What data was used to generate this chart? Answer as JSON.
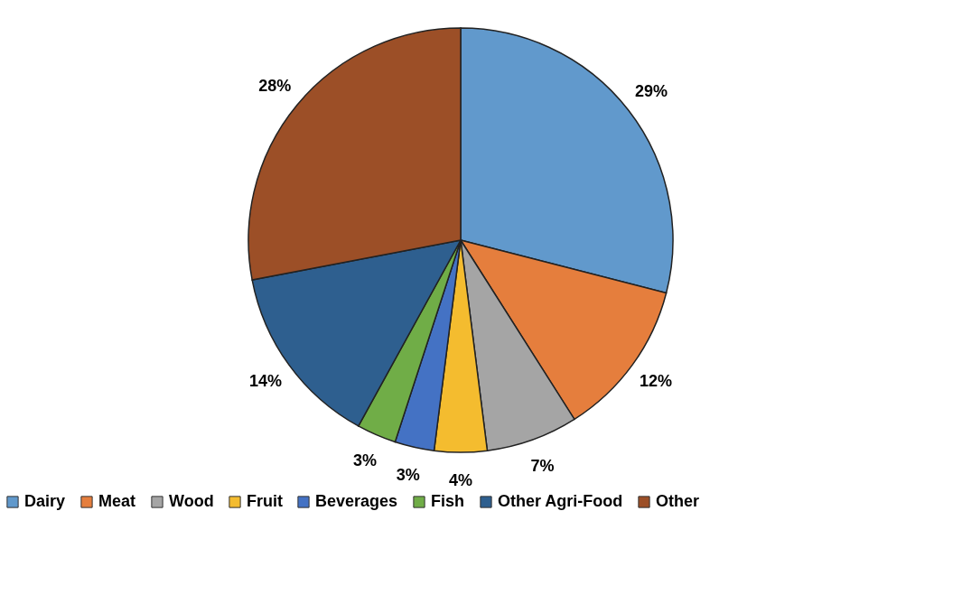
{
  "chart_data": {
    "type": "pie",
    "categories": [
      "Dairy",
      "Meat",
      "Wood",
      "Fruit",
      "Beverages",
      "Fish",
      "Other Agri-Food",
      "Other"
    ],
    "values": [
      29,
      12,
      7,
      4,
      3,
      3,
      14,
      28
    ],
    "colors": [
      "#6199cc",
      "#e57e3d",
      "#a5a5a5",
      "#f4bc2f",
      "#4472c4",
      "#70ad47",
      "#2e5f8f",
      "#9c4f27"
    ],
    "value_labels": [
      "29%",
      "12%",
      "7%",
      "4%",
      "3%",
      "3%",
      "14%",
      "28%"
    ],
    "legend": "bottom"
  }
}
